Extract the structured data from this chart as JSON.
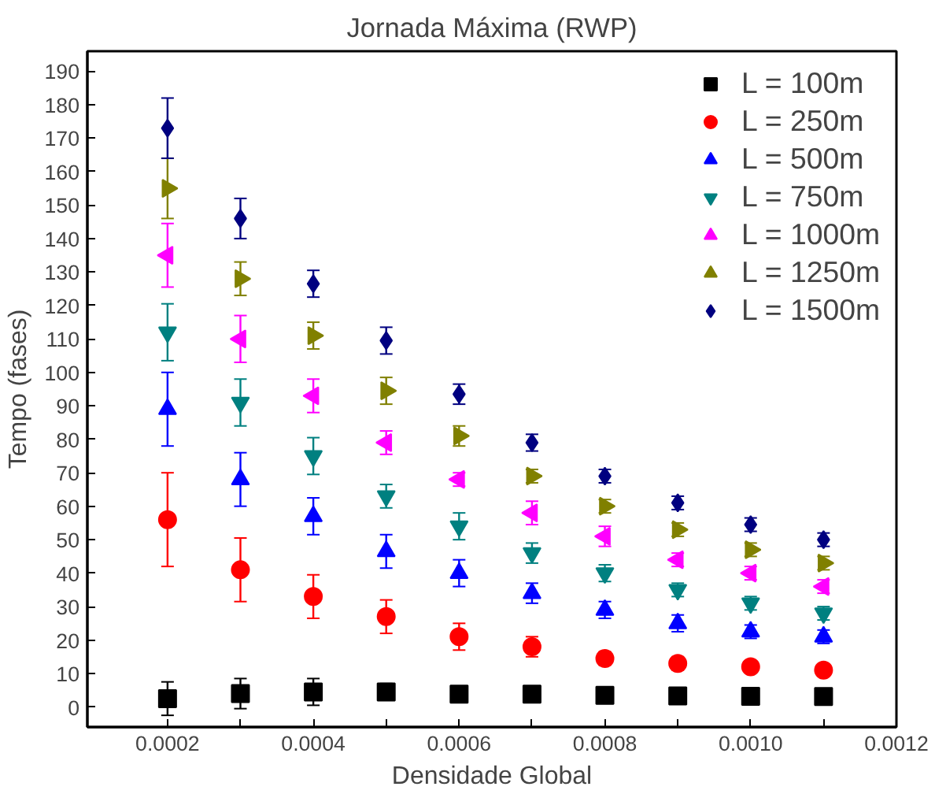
{
  "chart_data": {
    "type": "scatter",
    "title": "Jornada Máxima (RWP)",
    "xlabel": "Densidade Global",
    "ylabel": "Tempo (fases)",
    "x": [
      0.0002,
      0.0003,
      0.0004,
      0.0005,
      0.0006,
      0.0007,
      0.0008,
      0.0009,
      0.001,
      0.0011
    ],
    "xlim": [
      9e-05,
      0.0012
    ],
    "ylim": [
      -6,
      196
    ],
    "xticks": [
      {
        "value": 0.0002,
        "label": "0.0002"
      },
      {
        "value": 0.0003,
        "label": null
      },
      {
        "value": 0.0004,
        "label": "0.0004"
      },
      {
        "value": 0.0005,
        "label": null
      },
      {
        "value": 0.0006,
        "label": "0.0006"
      },
      {
        "value": 0.0007,
        "label": null
      },
      {
        "value": 0.0008,
        "label": "0.0008"
      },
      {
        "value": 0.0009,
        "label": null
      },
      {
        "value": 0.001,
        "label": "0.0010"
      },
      {
        "value": 0.0011,
        "label": null
      },
      {
        "value": 0.0012,
        "label": "0.0012"
      }
    ],
    "yticks": [
      0,
      10,
      20,
      30,
      40,
      50,
      60,
      70,
      80,
      90,
      100,
      110,
      120,
      130,
      140,
      150,
      160,
      170,
      180,
      190
    ],
    "grid": false,
    "legend": "top right",
    "series": [
      {
        "name": "L = 100m",
        "color": "#000000",
        "marker": "square",
        "values": [
          2.5,
          4,
          4.5,
          4.5,
          3.8,
          3.8,
          3.5,
          3.3,
          3.2,
          3.1
        ],
        "errors": [
          5,
          4.5,
          4,
          2.5,
          1,
          1,
          1,
          1,
          1,
          1
        ]
      },
      {
        "name": "L = 250m",
        "color": "#ff0000",
        "marker": "circle",
        "values": [
          56,
          41,
          33,
          27,
          21,
          18,
          14.5,
          13,
          12,
          11
        ],
        "errors": [
          14,
          9.5,
          6.5,
          5,
          4,
          3,
          2,
          2,
          1,
          1
        ]
      },
      {
        "name": "L = 500m",
        "color": "#0000ff",
        "marker": "triangle",
        "values": [
          89,
          68,
          57,
          46.5,
          40,
          34,
          29,
          25,
          22.5,
          21
        ],
        "errors": [
          11,
          8,
          5.5,
          5,
          4,
          3,
          2.5,
          2.5,
          2,
          2
        ]
      },
      {
        "name": "L = 750m",
        "color": "#008080",
        "marker": "triangle-down",
        "values": [
          112,
          91,
          75,
          63,
          54,
          46,
          40,
          35,
          31,
          28
        ],
        "errors": [
          8.5,
          7,
          5.5,
          3.5,
          4,
          3,
          2.5,
          2,
          2,
          2
        ]
      },
      {
        "name": "L = 1000m",
        "color": "#ff00ff",
        "marker": "triangle-left",
        "values": [
          135,
          110,
          93,
          79,
          68,
          58,
          51,
          44,
          40,
          36
        ],
        "errors": [
          9.5,
          7,
          5,
          3.5,
          2,
          3.5,
          3,
          2,
          2,
          2
        ]
      },
      {
        "name": "L = 1250m",
        "color": "#808000",
        "marker": "triangle-right",
        "values": [
          155,
          128,
          111,
          94.5,
          81,
          69,
          60,
          53,
          47,
          43
        ],
        "errors": [
          9,
          5,
          4,
          4,
          3,
          2,
          2,
          2,
          2,
          2
        ]
      },
      {
        "name": "L = 1500m",
        "color": "#000080",
        "marker": "diamond",
        "values": [
          173,
          146,
          126.5,
          109.5,
          93.5,
          79,
          69,
          61,
          54.5,
          50
        ],
        "errors": [
          9,
          6,
          4,
          4,
          3,
          2.5,
          2,
          2,
          2,
          2
        ]
      }
    ]
  }
}
